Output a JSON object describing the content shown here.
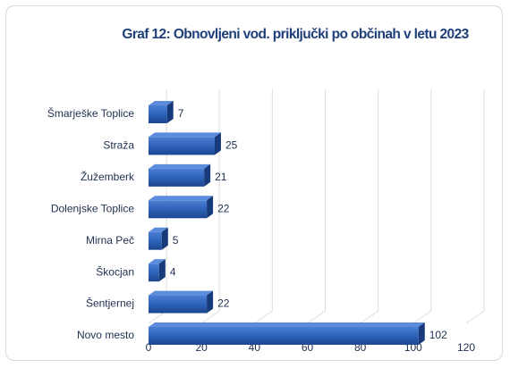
{
  "chart_data": {
    "type": "bar",
    "orientation": "horizontal",
    "title": "Graf 12: Obnovljeni vod. priključki po občinah v letu 2023",
    "categories": [
      "Šmarješke Toplice",
      "Straža",
      "Žužemberk",
      "Dolenjske Toplice",
      "Mirna Peč",
      "Škocjan",
      "Šentjernej",
      "Novo mesto"
    ],
    "values": [
      7,
      25,
      21,
      22,
      5,
      4,
      22,
      102
    ],
    "color": "#2e62b8",
    "xlim": [
      0,
      120
    ],
    "xticks": [
      0,
      20,
      40,
      60,
      80,
      100,
      120
    ],
    "grid": true
  }
}
